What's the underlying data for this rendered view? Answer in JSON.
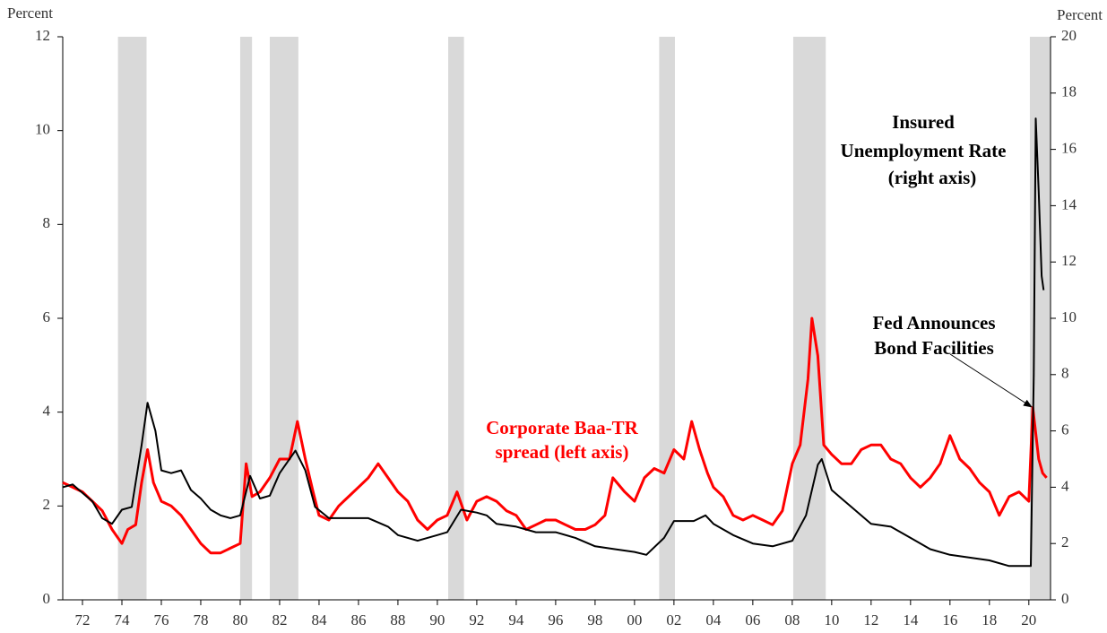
{
  "chart_data": {
    "type": "line",
    "y_axis_label": "Percent",
    "y2_axis_label": "Percent",
    "xlim": [
      1971,
      2021.1
    ],
    "xticks": [
      {
        "value": 1972,
        "label": "72"
      },
      {
        "value": 1974,
        "label": "74"
      },
      {
        "value": 1976,
        "label": "76"
      },
      {
        "value": 1978,
        "label": "78"
      },
      {
        "value": 1980,
        "label": "80"
      },
      {
        "value": 1982,
        "label": "82"
      },
      {
        "value": 1984,
        "label": "84"
      },
      {
        "value": 1986,
        "label": "86"
      },
      {
        "value": 1988,
        "label": "88"
      },
      {
        "value": 1990,
        "label": "90"
      },
      {
        "value": 1992,
        "label": "92"
      },
      {
        "value": 1994,
        "label": "94"
      },
      {
        "value": 1996,
        "label": "96"
      },
      {
        "value": 1998,
        "label": "98"
      },
      {
        "value": 2000,
        "label": "00"
      },
      {
        "value": 2002,
        "label": "02"
      },
      {
        "value": 2004,
        "label": "04"
      },
      {
        "value": 2006,
        "label": "06"
      },
      {
        "value": 2008,
        "label": "08"
      },
      {
        "value": 2010,
        "label": "10"
      },
      {
        "value": 2012,
        "label": "12"
      },
      {
        "value": 2014,
        "label": "14"
      },
      {
        "value": 2016,
        "label": "16"
      },
      {
        "value": 2018,
        "label": "18"
      },
      {
        "value": 2020,
        "label": "20"
      }
    ],
    "ylim": [
      0,
      12
    ],
    "yticks": [
      0,
      2,
      4,
      6,
      8,
      10,
      12
    ],
    "y2lim": [
      0,
      20
    ],
    "y2ticks": [
      0,
      2,
      4,
      6,
      8,
      10,
      12,
      14,
      16,
      18,
      20
    ],
    "recession_color": "#d9d9d9",
    "recessions": [
      {
        "start": 1973.8,
        "end": 1975.25
      },
      {
        "start": 1980.0,
        "end": 1980.6
      },
      {
        "start": 1981.5,
        "end": 1982.95
      },
      {
        "start": 1990.55,
        "end": 1991.35
      },
      {
        "start": 2001.25,
        "end": 2002.05
      },
      {
        "start": 2008.05,
        "end": 2009.7
      },
      {
        "start": 2020.05,
        "end": 2021.1
      }
    ],
    "series": [
      {
        "name": "Corporate Baa-TR spread",
        "color": "#ff0000",
        "axis": "y",
        "x": [
          1971,
          1971.5,
          1972,
          1972.5,
          1973,
          1973.5,
          1974,
          1974.3,
          1974.7,
          1975,
          1975.3,
          1975.6,
          1976,
          1976.5,
          1977,
          1977.5,
          1978,
          1978.5,
          1979,
          1979.5,
          1980,
          1980.3,
          1980.6,
          1981,
          1981.5,
          1982,
          1982.5,
          1982.9,
          1983.3,
          1983.7,
          1984,
          1984.5,
          1985,
          1985.5,
          1986,
          1986.5,
          1987,
          1987.5,
          1988,
          1988.5,
          1989,
          1989.5,
          1990,
          1990.5,
          1991,
          1991.5,
          1992,
          1992.5,
          1993,
          1993.5,
          1994,
          1994.5,
          1995,
          1995.5,
          1996,
          1996.5,
          1997,
          1997.5,
          1998,
          1998.5,
          1998.9,
          1999.5,
          2000,
          2000.5,
          2001,
          2001.5,
          2002,
          2002.5,
          2002.9,
          2003.3,
          2003.7,
          2004,
          2004.5,
          2005,
          2005.5,
          2006,
          2006.5,
          2007,
          2007.5,
          2008,
          2008.4,
          2008.8,
          2009,
          2009.3,
          2009.6,
          2010,
          2010.5,
          2011,
          2011.5,
          2012,
          2012.5,
          2013,
          2013.5,
          2014,
          2014.5,
          2015,
          2015.5,
          2016,
          2016.5,
          2017,
          2017.5,
          2018,
          2018.5,
          2019,
          2019.5,
          2020,
          2020.2,
          2020.5,
          2020.7,
          2020.9
        ],
        "values": [
          2.5,
          2.4,
          2.3,
          2.1,
          1.9,
          1.5,
          1.2,
          1.5,
          1.6,
          2.5,
          3.2,
          2.5,
          2.1,
          2.0,
          1.8,
          1.5,
          1.2,
          1.0,
          1.0,
          1.1,
          1.2,
          2.9,
          2.2,
          2.3,
          2.6,
          3.0,
          3.0,
          3.8,
          3.0,
          2.3,
          1.8,
          1.7,
          2.0,
          2.2,
          2.4,
          2.6,
          2.9,
          2.6,
          2.3,
          2.1,
          1.7,
          1.5,
          1.7,
          1.8,
          2.3,
          1.7,
          2.1,
          2.2,
          2.1,
          1.9,
          1.8,
          1.5,
          1.6,
          1.7,
          1.7,
          1.6,
          1.5,
          1.5,
          1.6,
          1.8,
          2.6,
          2.3,
          2.1,
          2.6,
          2.8,
          2.7,
          3.2,
          3.0,
          3.8,
          3.2,
          2.7,
          2.4,
          2.2,
          1.8,
          1.7,
          1.8,
          1.7,
          1.6,
          1.9,
          2.9,
          3.3,
          4.7,
          6.0,
          5.2,
          3.3,
          3.1,
          2.9,
          2.9,
          3.2,
          3.3,
          3.3,
          3.0,
          2.9,
          2.6,
          2.4,
          2.6,
          2.9,
          3.5,
          3.0,
          2.8,
          2.5,
          2.3,
          1.8,
          2.2,
          2.3,
          2.1,
          4.1,
          3.0,
          2.7,
          2.6
        ]
      },
      {
        "name": "Insured Unemployment Rate",
        "color": "#000000",
        "axis": "y2",
        "x": [
          1971,
          1971.5,
          1972,
          1972.5,
          1973,
          1973.5,
          1974,
          1974.5,
          1975,
          1975.3,
          1975.7,
          1976,
          1976.5,
          1977,
          1977.5,
          1978,
          1978.5,
          1979,
          1979.5,
          1980,
          1980.5,
          1981,
          1981.5,
          1982,
          1982.8,
          1983.3,
          1983.8,
          1984.5,
          1985.5,
          1986.5,
          1987.5,
          1988,
          1989,
          1990,
          1990.5,
          1991.2,
          1992,
          1992.5,
          1993,
          1994,
          1995,
          1996,
          1997,
          1998,
          1999,
          2000,
          2000.6,
          2001.5,
          2002,
          2003,
          2003.6,
          2004,
          2005,
          2006,
          2007,
          2008,
          2008.7,
          2009.3,
          2009.5,
          2010,
          2010.5,
          2011,
          2012,
          2013,
          2014,
          2015,
          2016,
          2017,
          2018,
          2019,
          2020.1,
          2020.25,
          2020.35,
          2020.5,
          2020.65,
          2020.75
        ],
        "values": [
          4.0,
          4.1,
          3.8,
          3.5,
          2.9,
          2.7,
          3.2,
          3.3,
          5.5,
          7.0,
          6.0,
          4.6,
          4.5,
          4.6,
          3.9,
          3.6,
          3.2,
          3.0,
          2.9,
          3.0,
          4.4,
          3.6,
          3.7,
          4.5,
          5.3,
          4.6,
          3.3,
          2.9,
          2.9,
          2.9,
          2.6,
          2.3,
          2.1,
          2.3,
          2.4,
          3.2,
          3.1,
          3.0,
          2.7,
          2.6,
          2.4,
          2.4,
          2.2,
          1.9,
          1.8,
          1.7,
          1.6,
          2.2,
          2.8,
          2.8,
          3.0,
          2.7,
          2.3,
          2.0,
          1.9,
          2.1,
          3.0,
          4.8,
          5.0,
          3.9,
          3.6,
          3.3,
          2.7,
          2.6,
          2.2,
          1.8,
          1.6,
          1.5,
          1.4,
          1.2,
          1.2,
          8.0,
          17.1,
          14.5,
          11.5,
          11.0
        ]
      }
    ],
    "annotations": [
      {
        "lines": [
          "Insured",
          "Unemployment Rate",
          "(right axis)"
        ],
        "color": "#000000"
      },
      {
        "lines": [
          "Fed Announces",
          "Bond Facilities"
        ],
        "color": "#000000"
      },
      {
        "lines": [
          "Corporate Baa-TR",
          "spread (left axis)"
        ],
        "color": "#ff0000"
      }
    ]
  }
}
